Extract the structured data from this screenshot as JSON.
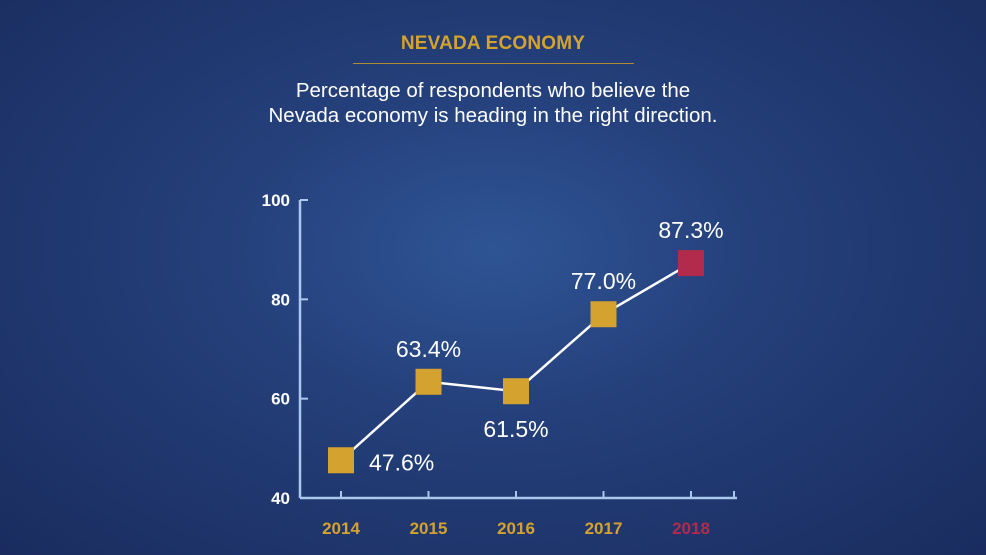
{
  "header": {
    "title": "NEVADA ECONOMY",
    "subtitle_line1": "Percentage of respondents who believe the",
    "subtitle_line2": "Nevada economy is heading in the right direction."
  },
  "colors": {
    "accent_gold": "#d4a22f",
    "highlight_crimson": "#b22b4c",
    "axis": "#a9c8ec",
    "line": "#ffffff"
  },
  "chart_data": {
    "type": "line",
    "title": "NEVADA ECONOMY",
    "subtitle": "Percentage of respondents who believe the Nevada economy is heading in the right direction.",
    "categories": [
      "2014",
      "2015",
      "2016",
      "2017",
      "2018"
    ],
    "series": [
      {
        "values": [
          47.6,
          63.4,
          61.5,
          77.0,
          87.3
        ]
      }
    ],
    "data_labels": [
      "47.6%",
      "63.4%",
      "61.5%",
      "77.0%",
      "87.3%"
    ],
    "label_position": [
      "right",
      "above",
      "below",
      "above",
      "above"
    ],
    "highlight_index": 4,
    "yticks": [
      40,
      60,
      80,
      100
    ],
    "ylim": [
      40,
      100
    ],
    "xlabel": "",
    "ylabel": "",
    "grid": false,
    "legend": "none"
  }
}
